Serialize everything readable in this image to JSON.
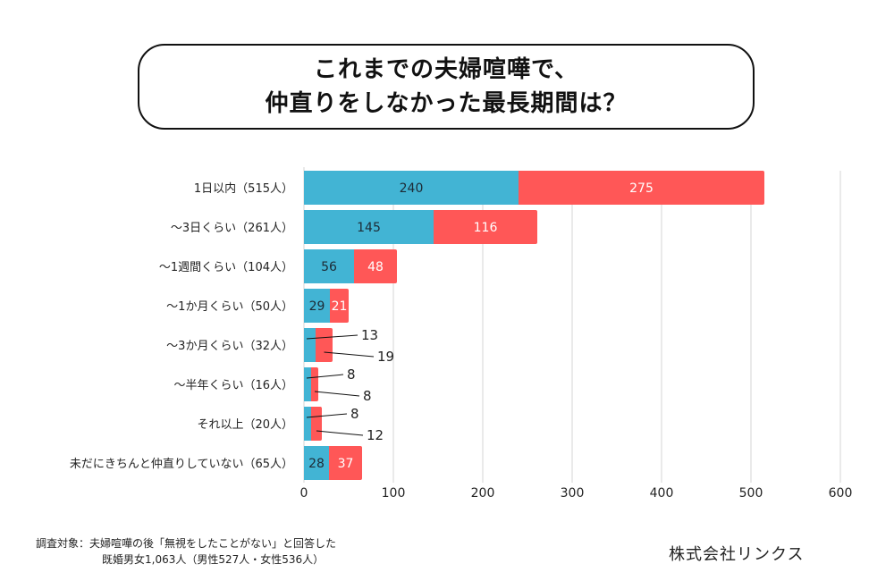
{
  "title": {
    "line1": "これまでの夫婦喧嘩で、",
    "line2": "仲直りをしなかった最長期間は？"
  },
  "colors": {
    "series1": "#42B4D4",
    "series2": "#FF5757",
    "grid": "#d6d6d6"
  },
  "chart_data": {
    "type": "bar",
    "orientation": "horizontal",
    "stacked": true,
    "title": "これまでの夫婦喧嘩で、仲直りをしなかった最長期間は？",
    "categories": [
      "1日以内（515人）",
      "～3日くらい（261人）",
      "～1週間くらい（104人）",
      "～1か月くらい（50人）",
      "～3か月くらい（32人）",
      "～半年くらい（16人）",
      "それ以上（20人）",
      "未だにきちんと仲直りしていない（65人）"
    ],
    "series": [
      {
        "name": "series1",
        "values": [
          240,
          145,
          56,
          29,
          13,
          8,
          8,
          28
        ]
      },
      {
        "name": "series2",
        "values": [
          275,
          116,
          48,
          21,
          19,
          8,
          12,
          37
        ]
      }
    ],
    "xlabel": "",
    "ylabel": "",
    "xlim": [
      0,
      600
    ],
    "xticks": [
      0,
      100,
      200,
      300,
      400,
      500,
      600
    ],
    "grid": true,
    "legend": "none"
  },
  "footer": {
    "note_line1": "調査対象：夫婦喧嘩の後「無視をしたことがない」と回答した",
    "note_line2": "既婚男女1,063人（男性527人・女性536人）",
    "company": "株式会社リンクス"
  }
}
